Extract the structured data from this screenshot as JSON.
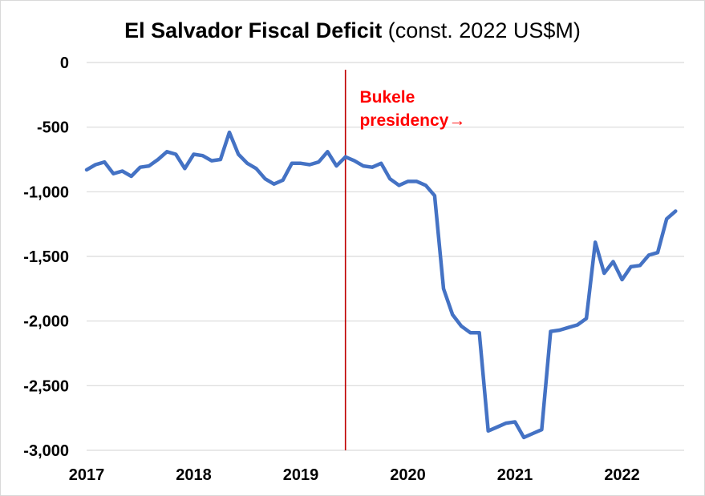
{
  "title_main": "El Salvador Fiscal Deficit",
  "title_sub": "(const. 2022 US$M)",
  "chart_data": {
    "type": "line",
    "title": "El Salvador Fiscal Deficit (const. 2022 US$M)",
    "xlabel": "",
    "ylabel": "",
    "xlim": [
      2017,
      2022.58
    ],
    "ylim": [
      -3000,
      0
    ],
    "x_ticks": [
      2017,
      2018,
      2019,
      2020,
      2021,
      2022
    ],
    "y_ticks": [
      0,
      -500,
      -1000,
      -1500,
      -2000,
      -2500,
      -3000
    ],
    "y_tick_labels": [
      "0",
      "-500",
      "-1,000",
      "-1,500",
      "-2,000",
      "-2,500",
      "-3,000"
    ],
    "x_tick_labels": [
      "2017",
      "2018",
      "2019",
      "2020",
      "2021",
      "2022"
    ],
    "grid": "horizontal",
    "colors": {
      "line": "#4472C4",
      "marker": "#C00000",
      "annotation": "#FF0000",
      "grid": "#d9d9d9"
    },
    "series": [
      {
        "x": [
          2017.0,
          2017.083,
          2017.167,
          2017.25,
          2017.333,
          2017.417,
          2017.5,
          2017.583,
          2017.667,
          2017.75,
          2017.833,
          2017.917,
          2018.0,
          2018.083,
          2018.167,
          2018.25,
          2018.333,
          2018.417,
          2018.5,
          2018.583,
          2018.667,
          2018.75,
          2018.833,
          2018.917,
          2019.0,
          2019.083,
          2019.167,
          2019.25,
          2019.333,
          2019.417,
          2019.5,
          2019.583,
          2019.667,
          2019.75,
          2019.833,
          2019.917,
          2020.0,
          2020.083,
          2020.167,
          2020.25,
          2020.333,
          2020.417,
          2020.5,
          2020.583,
          2020.667,
          2020.75,
          2020.833,
          2020.917,
          2021.0,
          2021.083,
          2021.167,
          2021.25,
          2021.333,
          2021.417,
          2021.5,
          2021.583,
          2021.667,
          2021.75,
          2021.833,
          2021.917,
          2022.0,
          2022.083,
          2022.167,
          2022.25,
          2022.333,
          2022.417,
          2022.5
        ],
        "values": [
          -830,
          -790,
          -770,
          -860,
          -840,
          -880,
          -810,
          -800,
          -750,
          -690,
          -710,
          -820,
          -710,
          -720,
          -760,
          -750,
          -540,
          -710,
          -780,
          -820,
          -900,
          -940,
          -910,
          -780,
          -780,
          -790,
          -770,
          -690,
          -800,
          -730,
          -760,
          -800,
          -810,
          -780,
          -900,
          -950,
          -920,
          -920,
          -950,
          -1030,
          -1750,
          -1950,
          -2040,
          -2090,
          -2090,
          -2850,
          -2820,
          -2790,
          -2780,
          -2900,
          -2870,
          -2840,
          -2080,
          -2070,
          -2050,
          -2030,
          -1980,
          -1390,
          -1630,
          -1540,
          -1680,
          -1580,
          -1570,
          -1490,
          -1470,
          -1210,
          -1150
        ]
      }
    ],
    "vertical_marker": {
      "x": 2019.417
    },
    "annotations": [
      {
        "text": "Bukele",
        "x": 2019.55,
        "y": -310
      },
      {
        "text": "presidency→",
        "x": 2019.55,
        "y": -490
      }
    ]
  }
}
